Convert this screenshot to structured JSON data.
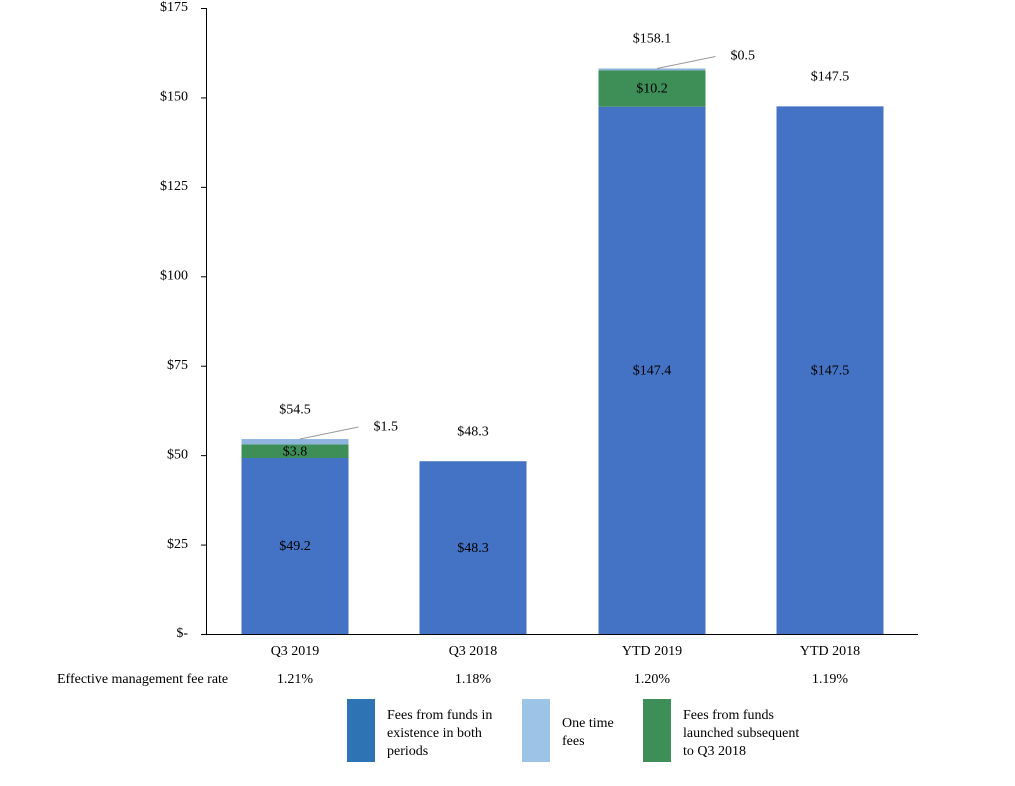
{
  "chart_data": {
    "type": "bar",
    "stacked": true,
    "categories": [
      "Q3 2019",
      "Q3 2018",
      "YTD 2019",
      "YTD 2018"
    ],
    "series": [
      {
        "name": "Fees from funds in existence in both periods",
        "color": "#4472C4",
        "values": [
          49.2,
          48.3,
          147.4,
          147.5
        ]
      },
      {
        "name": "Fees from funds launched subsequent to Q3 2018",
        "color": "#3E8E57",
        "values": [
          3.8,
          0,
          10.2,
          0
        ]
      },
      {
        "name": "One time fees",
        "color": "#8FB4DE",
        "values": [
          1.5,
          0,
          0.5,
          0
        ]
      }
    ],
    "segment_labels": [
      [
        "$49.2",
        "$3.8",
        "$1.5"
      ],
      [
        "$48.3",
        "",
        ""
      ],
      [
        "$147.4",
        "$10.2",
        "$0.5"
      ],
      [
        "$147.5",
        "",
        ""
      ]
    ],
    "totals": [
      54.5,
      48.3,
      158.1,
      147.5
    ],
    "total_labels": [
      "$54.5",
      "$48.3",
      "$158.1",
      "$147.5"
    ],
    "ylim": [
      0,
      175
    ],
    "yticks": [
      0,
      25,
      50,
      75,
      100,
      125,
      150,
      175
    ],
    "ytick_labels": [
      "$-",
      "$25",
      "$50",
      "$75",
      "$100",
      "$125",
      "$150",
      "$175"
    ],
    "title": "",
    "xlabel": "",
    "ylabel": ""
  },
  "fee_rate": {
    "label": "Effective management fee rate",
    "values": [
      "1.21%",
      "1.18%",
      "1.20%",
      "1.19%"
    ]
  },
  "legend": [
    {
      "text": "Fees from funds in\nexistence in both\nperiods",
      "color": "#2E74B5"
    },
    {
      "text": "One time\nfees",
      "color": "#9DC3E6"
    },
    {
      "text": "Fees from funds\nlaunched subsequent\nto Q3 2018",
      "color": "#3E8E57"
    }
  ]
}
